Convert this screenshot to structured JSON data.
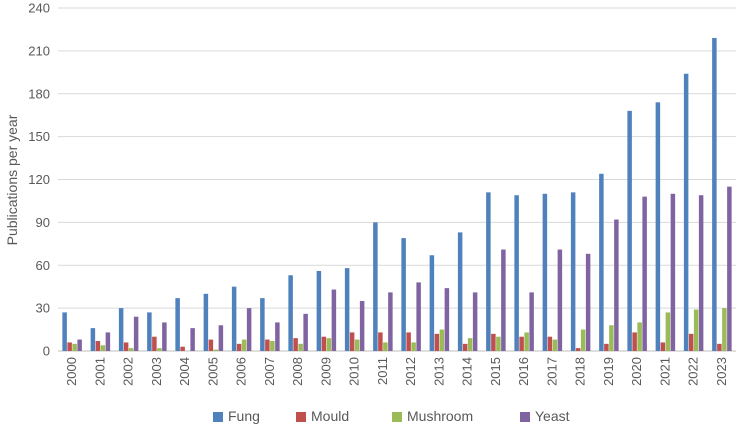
{
  "chart_data": {
    "type": "bar",
    "title": "",
    "xlabel": "",
    "ylabel": "Publications per year",
    "ylim": [
      0,
      240
    ],
    "yticks": [
      0,
      30,
      60,
      90,
      120,
      150,
      180,
      210,
      240
    ],
    "grid": "horizontal",
    "legend_position": "bottom",
    "categories": [
      "2000",
      "2001",
      "2002",
      "2003",
      "2004",
      "2005",
      "2006",
      "2007",
      "2008",
      "2009",
      "2010",
      "2011",
      "2012",
      "2013",
      "2014",
      "2015",
      "2016",
      "2017",
      "2018",
      "2019",
      "2020",
      "2021",
      "2022",
      "2023"
    ],
    "series": [
      {
        "name": "Fung",
        "color": "#4F81BD",
        "values": [
          27,
          16,
          30,
          27,
          37,
          40,
          45,
          37,
          53,
          56,
          58,
          90,
          79,
          67,
          83,
          111,
          109,
          110,
          111,
          124,
          168,
          174,
          194,
          219
        ]
      },
      {
        "name": "Mould",
        "color": "#C0504D",
        "values": [
          6,
          7,
          6,
          10,
          3,
          8,
          5,
          8,
          9,
          10,
          13,
          13,
          13,
          12,
          5,
          12,
          10,
          10,
          2,
          5,
          13,
          6,
          12,
          5
        ]
      },
      {
        "name": "Mushroom",
        "color": "#9BBB59",
        "values": [
          5,
          4,
          2,
          2,
          0,
          1,
          8,
          7,
          5,
          9,
          8,
          6,
          6,
          15,
          9,
          10,
          13,
          8,
          15,
          18,
          20,
          27,
          29,
          30
        ]
      },
      {
        "name": "Yeast",
        "color": "#8064A2",
        "values": [
          8,
          13,
          24,
          20,
          16,
          18,
          30,
          20,
          26,
          43,
          35,
          41,
          48,
          44,
          41,
          71,
          41,
          71,
          68,
          92,
          108,
          110,
          109,
          115
        ]
      }
    ]
  }
}
